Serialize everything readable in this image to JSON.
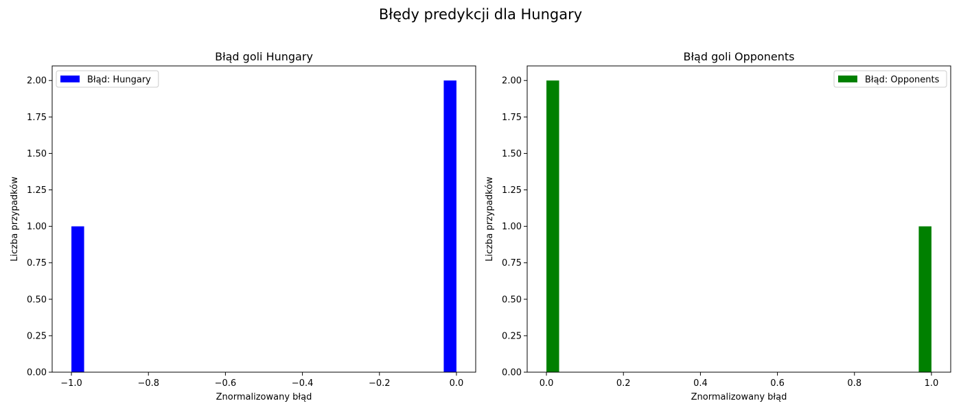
{
  "suptitle": "Błędy predykcji dla Hungary",
  "chart_data": [
    {
      "type": "bar",
      "title": "Błąd goli Hungary",
      "xlabel": "Znormalizowany błąd",
      "ylabel": "Liczba przypadków",
      "xlim": [
        -1.05,
        0.05
      ],
      "ylim": [
        0,
        2.1
      ],
      "xticks": [
        -1.0,
        -0.8,
        -0.6,
        -0.4,
        -0.2,
        0.0
      ],
      "xtick_labels": [
        "−1.0",
        "−0.8",
        "−0.6",
        "−0.4",
        "−0.2",
        "0.0"
      ],
      "yticks": [
        0,
        0.25,
        0.5,
        0.75,
        1.0,
        1.25,
        1.5,
        1.75,
        2.0
      ],
      "ytick_labels": [
        "0.00",
        "0.25",
        "0.50",
        "0.75",
        "1.00",
        "1.25",
        "1.50",
        "1.75",
        "2.00"
      ],
      "color": "#0000ff",
      "legend": {
        "label": "Błąd: Hungary",
        "position": "upper-left"
      },
      "bars": [
        {
          "left": -1.0,
          "right": -0.967,
          "value": 1
        },
        {
          "left": -0.033,
          "right": 0.0,
          "value": 2
        }
      ]
    },
    {
      "type": "bar",
      "title": "Błąd goli Opponents",
      "xlabel": "Znormalizowany błąd",
      "ylabel": "Liczba przypadków",
      "xlim": [
        -0.05,
        1.05
      ],
      "ylim": [
        0,
        2.1
      ],
      "xticks": [
        0.0,
        0.2,
        0.4,
        0.6,
        0.8,
        1.0
      ],
      "xtick_labels": [
        "0.0",
        "0.2",
        "0.4",
        "0.6",
        "0.8",
        "1.0"
      ],
      "yticks": [
        0,
        0.25,
        0.5,
        0.75,
        1.0,
        1.25,
        1.5,
        1.75,
        2.0
      ],
      "ytick_labels": [
        "0.00",
        "0.25",
        "0.50",
        "0.75",
        "1.00",
        "1.25",
        "1.50",
        "1.75",
        "2.00"
      ],
      "color": "#008000",
      "legend": {
        "label": "Błąd: Opponents",
        "position": "upper-right"
      },
      "bars": [
        {
          "left": 0.0,
          "right": 0.033,
          "value": 2
        },
        {
          "left": 0.967,
          "right": 1.0,
          "value": 1
        }
      ]
    }
  ]
}
